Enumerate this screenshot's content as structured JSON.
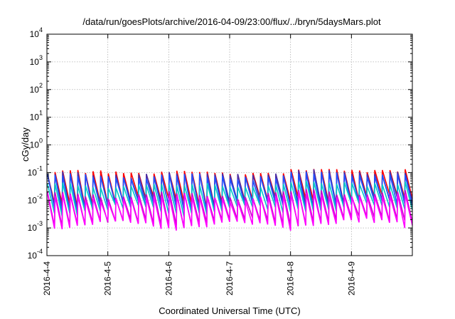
{
  "chart_data": {
    "type": "line",
    "title": "/data/run/goesPlots/archive/2016-04-09/23:00/flux/../bryn/5daysMars.plot",
    "xlabel": "Coordinated Universal Time (UTC)",
    "ylabel": "cGy/day",
    "x_range": [
      "2016-04-04",
      "2016-04-10"
    ],
    "x_ticks": [
      "2016-4-4",
      "2016-4-5",
      "2016-4-6",
      "2016-4-7",
      "2016-4-8",
      "2016-4-9"
    ],
    "y_scale": "log",
    "ylim": [
      0.0001,
      10000
    ],
    "y_ticks": [
      {
        "base": "10",
        "exp": "-4"
      },
      {
        "base": "10",
        "exp": "-3"
      },
      {
        "base": "10",
        "exp": "-2"
      },
      {
        "base": "10",
        "exp": "-1"
      },
      {
        "base": "10",
        "exp": "0"
      },
      {
        "base": "10",
        "exp": "1"
      },
      {
        "base": "10",
        "exp": "2"
      },
      {
        "base": "10",
        "exp": "3"
      },
      {
        "base": "10",
        "exp": "4"
      }
    ],
    "grid": true,
    "cycles_per_day": 8,
    "series": [
      {
        "color": "#ff0000",
        "peak": [
          0.09,
          0.11
        ],
        "trough": [
          0.006,
          0.012
        ]
      },
      {
        "color": "#4b2fa6",
        "peak": [
          0.075,
          0.1
        ],
        "trough": [
          0.005,
          0.01
        ]
      },
      {
        "color": "#2050ff",
        "peak": [
          0.06,
          0.085
        ],
        "trough": [
          0.004,
          0.008
        ]
      },
      {
        "color": "#00c8c8",
        "peak": [
          0.03,
          0.04
        ],
        "trough": [
          0.003,
          0.006
        ]
      },
      {
        "color": "#cc00cc",
        "peak": [
          0.012,
          0.02
        ],
        "trough": [
          0.0011,
          0.002
        ]
      },
      {
        "color": "#ff00ff",
        "peak": [
          0.01,
          0.016
        ],
        "trough": [
          0.0009,
          0.0016
        ]
      }
    ]
  }
}
